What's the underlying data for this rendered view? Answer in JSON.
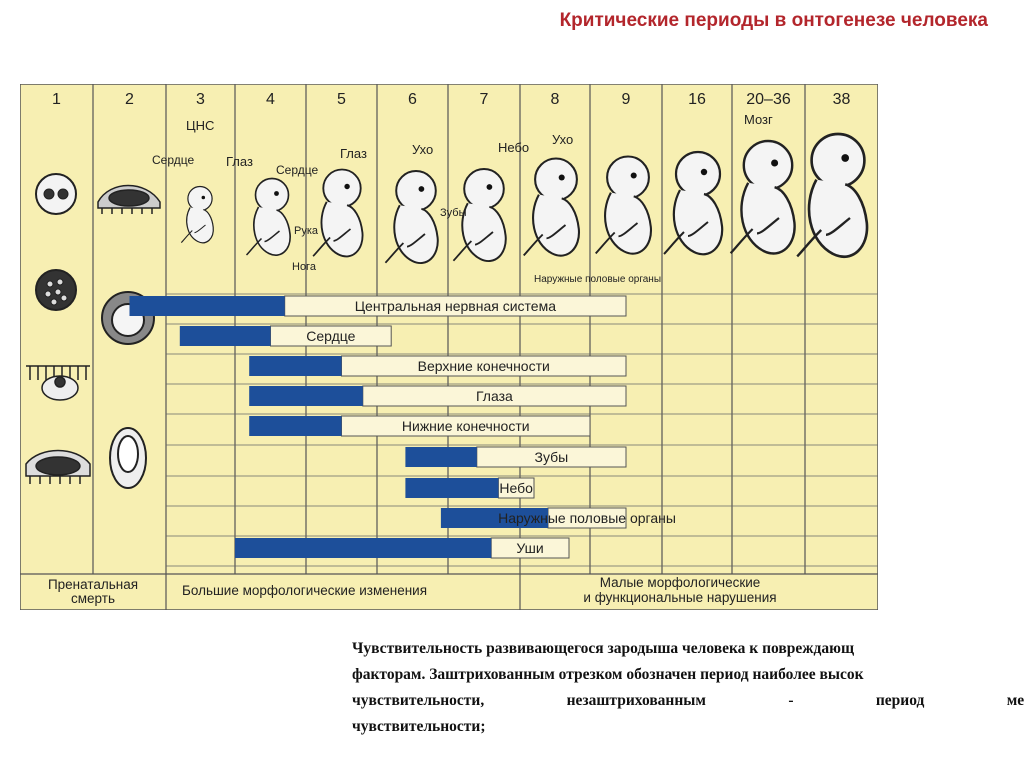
{
  "title": "Критические периоды в онтогенезе человека",
  "weeks": [
    "1",
    "2",
    "3",
    "4",
    "5",
    "6",
    "7",
    "8",
    "9",
    "16",
    "20–36",
    "38"
  ],
  "organ_labels": {
    "cns": "ЦНС",
    "heart": "Сердце",
    "eye": "Глаз",
    "heart2": "Сердце",
    "eye2": "Глаз",
    "arm": "Рука",
    "leg": "Нога",
    "ear": "Ухо",
    "teeth": "Зубы",
    "palate": "Небо",
    "ear2": "Ухо",
    "genitals": "Наружные половые органы",
    "brain": "Мозг"
  },
  "organs": [
    {
      "name": "Центральная нервная система",
      "critical": [
        1.5,
        3.7
      ],
      "sensitive": [
        3.7,
        8.5
      ]
    },
    {
      "name": "Сердце",
      "critical": [
        2.2,
        3.5
      ],
      "sensitive": [
        3.5,
        5.2
      ]
    },
    {
      "name": "Верхние конечности",
      "critical": [
        3.2,
        4.5
      ],
      "sensitive": [
        4.5,
        8.5
      ]
    },
    {
      "name": "Глаза",
      "critical": [
        3.2,
        4.8
      ],
      "sensitive": [
        4.8,
        8.5
      ]
    },
    {
      "name": "Нижние конечности",
      "critical": [
        3.2,
        4.5
      ],
      "sensitive": [
        4.5,
        8.0
      ]
    },
    {
      "name": "Зубы",
      "critical": [
        5.4,
        6.4
      ],
      "sensitive": [
        6.4,
        8.5
      ]
    },
    {
      "name": "Небо",
      "critical": [
        5.4,
        6.7
      ],
      "sensitive": [
        6.7,
        7.2
      ]
    },
    {
      "name": "Наружные половые органы",
      "critical": [
        5.9,
        7.4
      ],
      "sensitive": [
        7.4,
        8.5
      ]
    },
    {
      "name": "Уши",
      "critical": [
        3.0,
        6.6
      ],
      "sensitive": [
        6.6,
        7.7
      ]
    }
  ],
  "footer": {
    "prenatal": [
      "Пренатальная",
      "смерть"
    ],
    "major": "Большие морфологические изменения",
    "minor": [
      "Малые морфологические",
      "и функциональные нарушения"
    ]
  },
  "caption": [
    "Чувствительность развивающегося зародыша человека к повреждающ",
    "факторам. Заштрихованным отрезком обозначен период наиболее высок",
    [
      "чувствительности,",
      "незаштрихованным",
      "-",
      "период",
      "менц"
    ],
    "чувствительности;"
  ],
  "colors": {
    "background": "#f7efb2",
    "bar": "#1d4f9a",
    "grid": "#555555",
    "title": "#b3262c"
  }
}
